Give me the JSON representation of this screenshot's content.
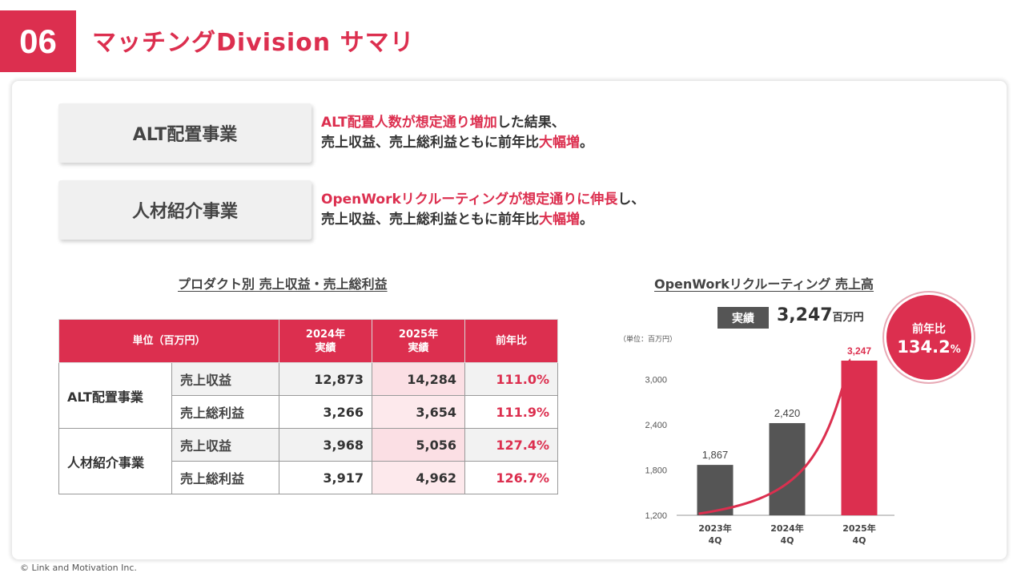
{
  "header": {
    "number": "06",
    "title": "マッチングDivision サマリ"
  },
  "businesses": [
    {
      "name": "ALT配置事業",
      "desc_line1_hl": "ALT配置人数が想定通り増加",
      "desc_line1_rest": "した結果、",
      "desc_line2_pre": "売上収益、売上総利益ともに前年比",
      "desc_line2_hl": "大幅増",
      "desc_line2_post": "。"
    },
    {
      "name": "人材紹介事業",
      "desc_line1_hl": "OpenWorkリクルーティングが想定通りに伸長",
      "desc_line1_rest": "し、",
      "desc_line2_pre": "売上収益、売上総利益ともに前年比",
      "desc_line2_hl": "大幅増",
      "desc_line2_post": "。"
    }
  ],
  "table": {
    "title": "プロダクト別 売上収益・売上総利益",
    "head_unit": "単位（百万円）",
    "head_2024_a": "2024年",
    "head_2024_b": "実績",
    "head_2025_a": "2025年",
    "head_2025_b": "実績",
    "head_yoy": "前年比",
    "groups": [
      {
        "name": "ALT配置事業",
        "rows": [
          {
            "metric": "売上収益",
            "v2024": "12,873",
            "v2025": "14,284",
            "yoy": "111.0%"
          },
          {
            "metric": "売上総利益",
            "v2024": "3,266",
            "v2025": "3,654",
            "yoy": "111.9%"
          }
        ]
      },
      {
        "name": "人材紹介事業",
        "rows": [
          {
            "metric": "売上収益",
            "v2024": "3,968",
            "v2025": "5,056",
            "yoy": "127.4%"
          },
          {
            "metric": "売上総利益",
            "v2024": "3,917",
            "v2025": "4,962",
            "yoy": "126.7%"
          }
        ]
      }
    ]
  },
  "kpi": {
    "tag": "実績",
    "value": "3,247",
    "unit": "百万円",
    "yoy_label": "前年比",
    "yoy_value": "134.2",
    "yoy_unit": "%"
  },
  "chart_data": {
    "type": "bar",
    "title": "OpenWorkリクルーティング 売上高",
    "unit_note": "（単位：百万円）",
    "categories": [
      [
        "2023年",
        "4Q"
      ],
      [
        "2024年",
        "4Q"
      ],
      [
        "2025年",
        "4Q"
      ]
    ],
    "values": [
      1867,
      2420,
      3247
    ],
    "value_labels": [
      "1,867",
      "2,420",
      "3,247"
    ],
    "ylim": [
      1200,
      3247
    ],
    "yticks": [
      1200,
      1800,
      2400,
      3000
    ],
    "ytick_labels": [
      "1,200",
      "1,800",
      "2,400",
      "3,000"
    ],
    "grid": false,
    "colors": [
      "#555555",
      "#555555",
      "#dc2f4f"
    ],
    "highlight_color": "#dc2f4f"
  },
  "footer": {
    "copyright": "© Link and Motivation Inc."
  }
}
